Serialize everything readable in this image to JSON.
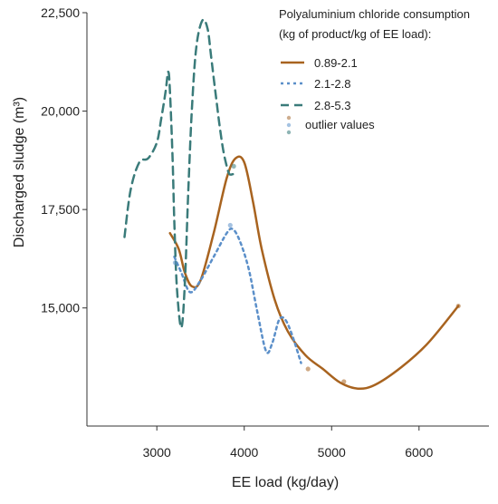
{
  "chart_data": {
    "type": "line",
    "title": "",
    "xlabel": "EE load (kg/day)",
    "ylabel": "Discharged sludge (m³)",
    "xlim": [
      2200,
      6800
    ],
    "ylim": [
      12000,
      22500
    ],
    "x_ticks": [
      3000,
      4000,
      5000,
      6000
    ],
    "x_tick_labels": [
      "3000",
      "4000",
      "5000",
      "6000"
    ],
    "y_ticks": [
      15000,
      17500,
      20000,
      22500
    ],
    "y_tick_labels": [
      "15,000",
      "17,500",
      "20,000",
      "22,500"
    ],
    "grid": false,
    "legend_position": "top-right",
    "legend_title_lines": [
      "Polyaluminium chloride consumption",
      "(kg of product/kg of EE load):"
    ],
    "series": [
      {
        "name": "0.89-2.1",
        "style": "solid",
        "color": "#a8631f",
        "x": [
          3150,
          3250,
          3320,
          3400,
          3500,
          3650,
          3800,
          3900,
          4000,
          4100,
          4200,
          4350,
          4500,
          4700,
          4900,
          5100,
          5300,
          5500,
          5800,
          6100,
          6450
        ],
        "y": [
          16900,
          16500,
          15900,
          15550,
          15700,
          16900,
          18300,
          18800,
          18700,
          17700,
          16500,
          15200,
          14400,
          13800,
          13450,
          13100,
          12950,
          13050,
          13500,
          14100,
          15050
        ]
      },
      {
        "name": "2.1-2.8",
        "style": "dotted",
        "color": "#5b8fc9",
        "x": [
          3200,
          3280,
          3380,
          3500,
          3650,
          3800,
          3870,
          3950,
          4050,
          4150,
          4250,
          4320,
          4400,
          4470,
          4550,
          4650
        ],
        "y": [
          16300,
          15900,
          15400,
          15700,
          16300,
          16900,
          17000,
          16700,
          16000,
          14900,
          13900,
          14100,
          14700,
          14700,
          14300,
          13600
        ]
      },
      {
        "name": "2.8-5.3",
        "style": "dashed",
        "color": "#3a7b7a",
        "x": [
          2630,
          2700,
          2800,
          2900,
          3000,
          3050,
          3100,
          3130,
          3150,
          3180,
          3200,
          3230,
          3280,
          3320,
          3360,
          3400,
          3450,
          3520,
          3580,
          3620,
          3680,
          3720,
          3760,
          3800,
          3830,
          3870
        ],
        "y": [
          16800,
          18000,
          18700,
          18800,
          19200,
          19800,
          20500,
          21000,
          20500,
          18800,
          17200,
          15500,
          14500,
          15600,
          18000,
          20000,
          21600,
          22300,
          22100,
          21400,
          20300,
          19600,
          19000,
          18600,
          18400,
          18400
        ]
      }
    ],
    "outliers": {
      "name": "outlier values",
      "points": [
        {
          "x": 3880,
          "y": 18600,
          "series": "2.8-5.3"
        },
        {
          "x": 3210,
          "y": 16150,
          "series": "2.1-2.8"
        },
        {
          "x": 3840,
          "y": 17100,
          "series": "2.1-2.8"
        },
        {
          "x": 4730,
          "y": 13450,
          "series": "0.89-2.1"
        },
        {
          "x": 5140,
          "y": 13130,
          "series": "0.89-2.1"
        },
        {
          "x": 6450,
          "y": 15050,
          "series": "0.89-2.1"
        }
      ]
    }
  }
}
